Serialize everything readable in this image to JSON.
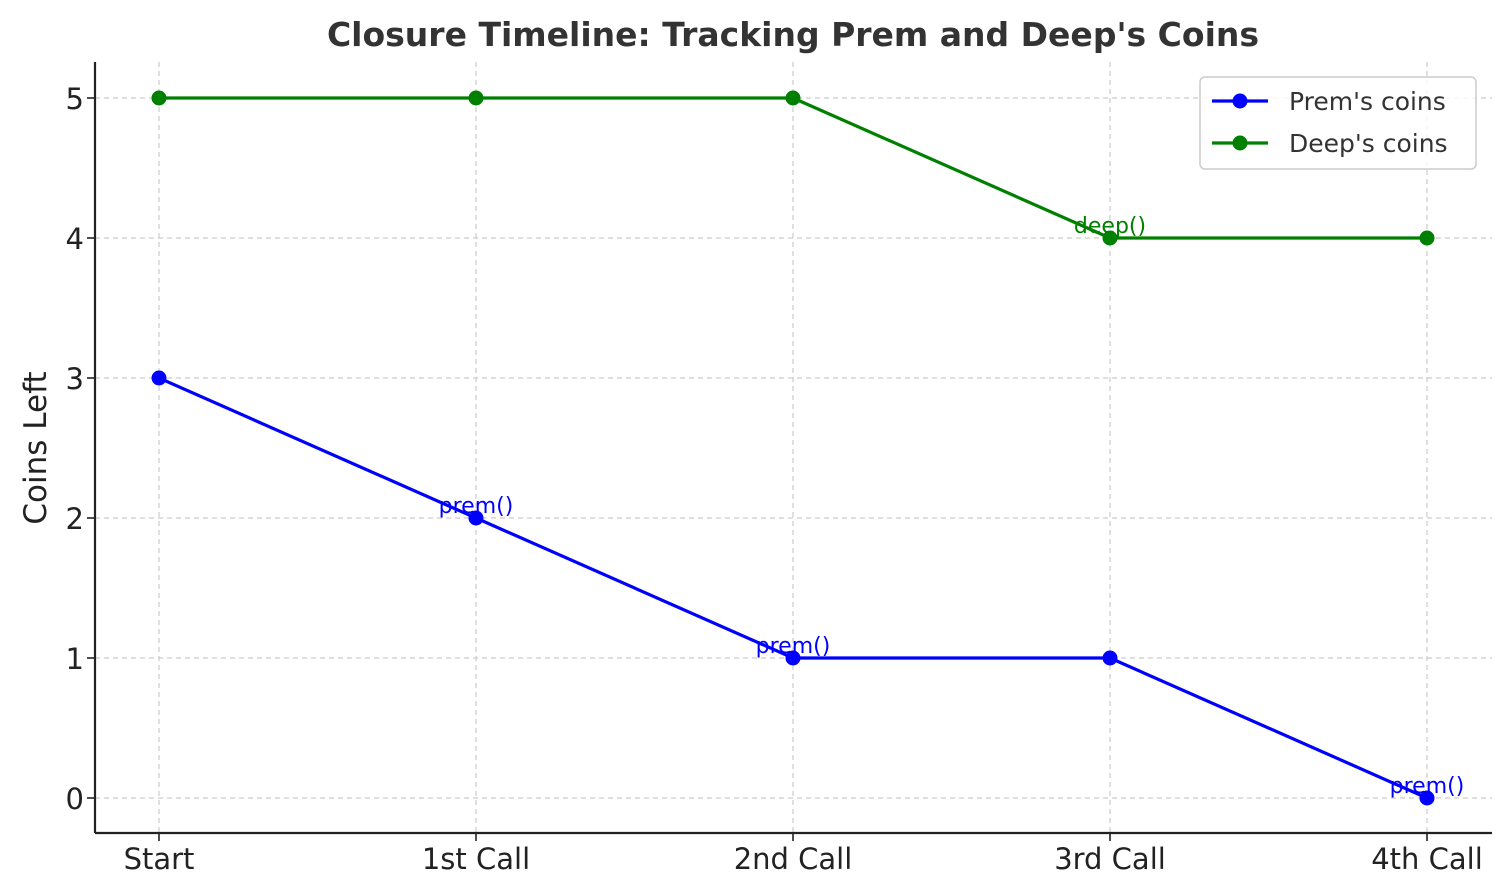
{
  "chart_data": {
    "type": "line",
    "title": "Closure Timeline: Tracking Prem and Deep's Coins",
    "xlabel": "",
    "ylabel": "Coins Left",
    "categories": [
      "Start",
      "1st Call",
      "2nd Call",
      "3rd Call",
      "4th Call"
    ],
    "yticks": [
      "0",
      "1",
      "2",
      "3",
      "4",
      "5"
    ],
    "ylim": [
      -0.25,
      5.25
    ],
    "grid": true,
    "legend_position": "top-right",
    "series": [
      {
        "name": "Prem's coins",
        "color": "#0000ff",
        "values": [
          3,
          2,
          1,
          1,
          0
        ]
      },
      {
        "name": "Deep's coins",
        "color": "#008000",
        "values": [
          5,
          5,
          5,
          4,
          4
        ]
      }
    ],
    "annotations": [
      {
        "text": "prem()",
        "category": "1st Call",
        "value": 2,
        "color": "#0000ff"
      },
      {
        "text": "prem()",
        "category": "2nd Call",
        "value": 1,
        "color": "#0000ff"
      },
      {
        "text": "deep()",
        "category": "3rd Call",
        "value": 4,
        "color": "#008000"
      },
      {
        "text": "prem()",
        "category": "4th Call",
        "value": 0,
        "color": "#0000ff"
      }
    ]
  }
}
